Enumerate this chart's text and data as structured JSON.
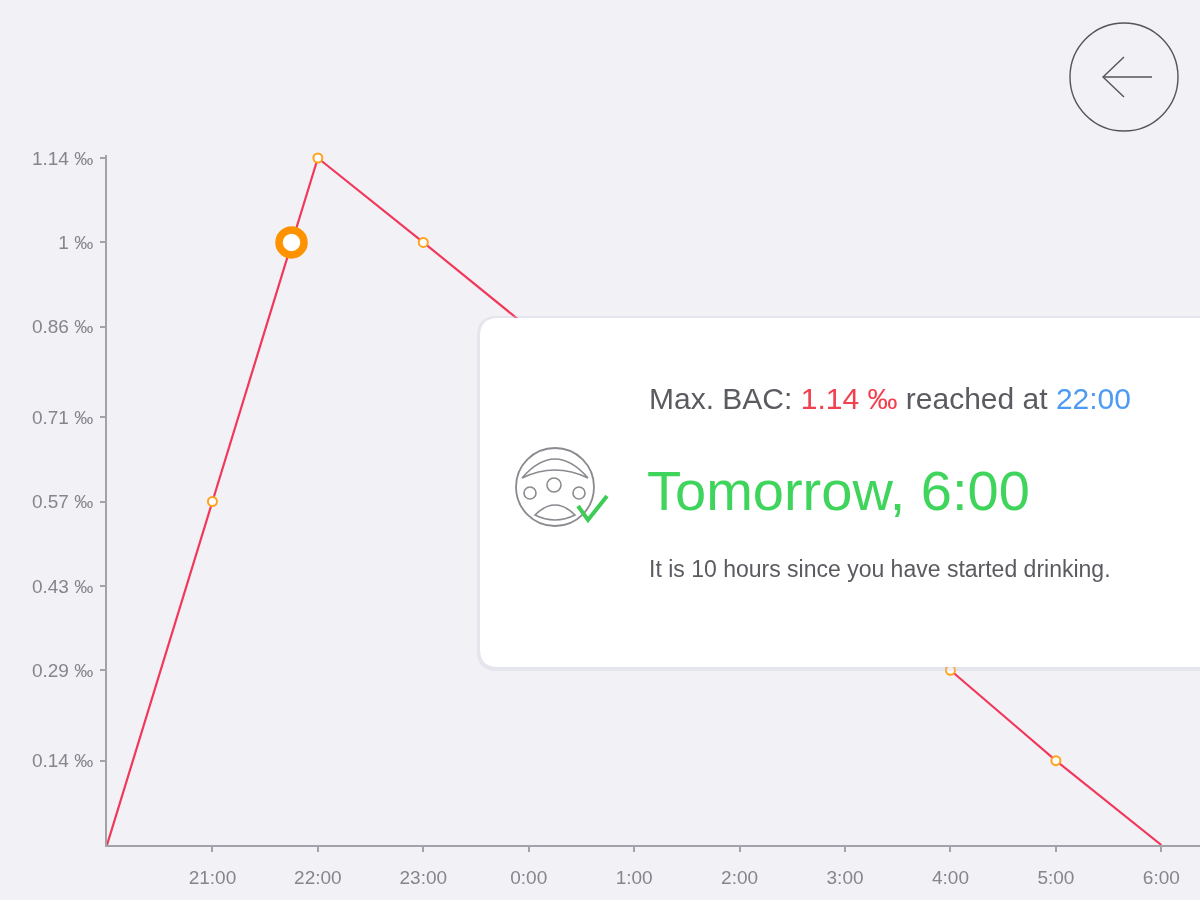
{
  "chart_data": {
    "type": "line",
    "series": [
      {
        "color": "#f2385a",
        "x": [
          "2000-01-01T20:00",
          "2000-01-01T21:00",
          "2000-01-01T22:00",
          "2000-01-01T23:00",
          "2000-01-02T04:00",
          "2000-01-02T05:00",
          "2000-01-02T06:00"
        ],
        "values": [
          0,
          0.57,
          1.14,
          1.0,
          0.29,
          0.14,
          0
        ],
        "marker": "none"
      },
      {
        "type": "scatter",
        "color": "#ffa21f",
        "x": [
          "2000-01-01T21:00",
          "2000-01-01T22:00",
          "2000-01-01T23:00",
          "2000-01-02T04:00",
          "2000-01-02T05:00"
        ],
        "values": [
          0.57,
          1.14,
          1.0,
          0.29,
          0.14
        ],
        "marker": "circle"
      },
      {
        "type": "scatter",
        "color": "#ff9200",
        "x": [
          "2000-01-01T21:45"
        ],
        "values": [
          1.0
        ],
        "marker": "circle"
      }
    ],
    "xlim": [
      "2000-01-01T20:00",
      "2000-01-02T06:22"
    ],
    "xticks": [
      {
        "value": "2000-01-01T21:00",
        "label": "21:00"
      },
      {
        "value": "2000-01-01T22:00",
        "label": "22:00"
      },
      {
        "value": "2000-01-01T23:00",
        "label": "23:00"
      },
      {
        "value": "2000-01-02T00:00",
        "label": "0:00"
      },
      {
        "value": "2000-01-02T01:00",
        "label": "1:00"
      },
      {
        "value": "2000-01-02T02:00",
        "label": "2:00"
      },
      {
        "value": "2000-01-02T03:00",
        "label": "3:00"
      },
      {
        "value": "2000-01-02T04:00",
        "label": "4:00"
      },
      {
        "value": "2000-01-02T05:00",
        "label": "5:00"
      },
      {
        "value": "2000-01-02T06:00",
        "label": "6:00"
      }
    ],
    "ylim": [
      0,
      1.145
    ],
    "yticks": [
      {
        "value": 0.14,
        "label": "0.14 ‰"
      },
      {
        "value": 0.29,
        "label": "0.29 ‰"
      },
      {
        "value": 0.43,
        "label": "0.43 ‰"
      },
      {
        "value": 0.57,
        "label": "0.57 ‰"
      },
      {
        "value": 0.71,
        "label": "0.71 ‰"
      },
      {
        "value": 0.86,
        "label": "0.86 ‰"
      },
      {
        "value": 1,
        "label": "1 ‰"
      },
      {
        "value": 1.14,
        "label": "1.14 ‰"
      }
    ],
    "annotations": [
      "Max. BAC: 1.14 ‰ reached at 22:00",
      "Tomorrow, 6:00",
      "It is 10 hours since you have started drinking."
    ],
    "line_style": "solid"
  }
}
